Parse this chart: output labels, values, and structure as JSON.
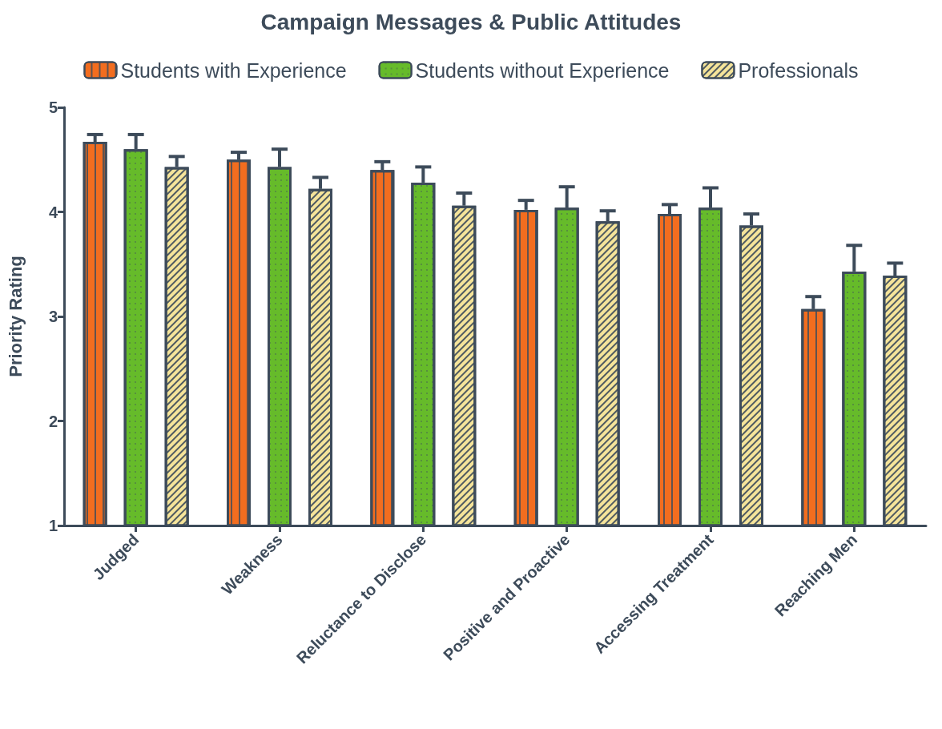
{
  "chart_data": {
    "type": "bar",
    "title": "Campaign Messages & Public Attitudes",
    "ylabel": "Priority Rating",
    "categories": [
      "Judged",
      "Weakness",
      "Reluctance to Disclose",
      "Positive and Proactive",
      "Accessing Treatment",
      "Reaching Men"
    ],
    "series": [
      {
        "name": "Students with Experience",
        "color": "#f26d1f",
        "values": [
          4.67,
          4.5,
          4.4,
          4.02,
          3.98,
          3.07
        ],
        "errors": [
          [
            4.67,
            4.74
          ],
          [
            4.5,
            4.57
          ],
          [
            4.4,
            4.48
          ],
          [
            4.02,
            4.11
          ],
          [
            3.98,
            4.07
          ],
          [
            3.07,
            3.19
          ]
        ]
      },
      {
        "name": "Students without Experience",
        "color": "#66bb2a",
        "values": [
          4.6,
          4.43,
          4.28,
          4.04,
          4.04,
          3.43
        ],
        "errors": [
          [
            4.6,
            4.74
          ],
          [
            4.43,
            4.6
          ],
          [
            4.28,
            4.43
          ],
          [
            4.04,
            4.24
          ],
          [
            4.04,
            4.23
          ],
          [
            3.43,
            3.68
          ]
        ]
      },
      {
        "name": "Professionals",
        "color": "#f5e49a",
        "values": [
          4.43,
          4.22,
          4.06,
          3.91,
          3.87,
          3.39
        ],
        "errors": [
          [
            4.43,
            4.53
          ],
          [
            4.22,
            4.33
          ],
          [
            4.06,
            4.18
          ],
          [
            3.91,
            4.01
          ],
          [
            3.87,
            3.98
          ],
          [
            3.39,
            3.51
          ]
        ]
      }
    ],
    "ylim": [
      1,
      5
    ],
    "yticks": [
      1,
      2,
      3,
      4,
      5
    ],
    "grid": false,
    "legend": "top"
  }
}
